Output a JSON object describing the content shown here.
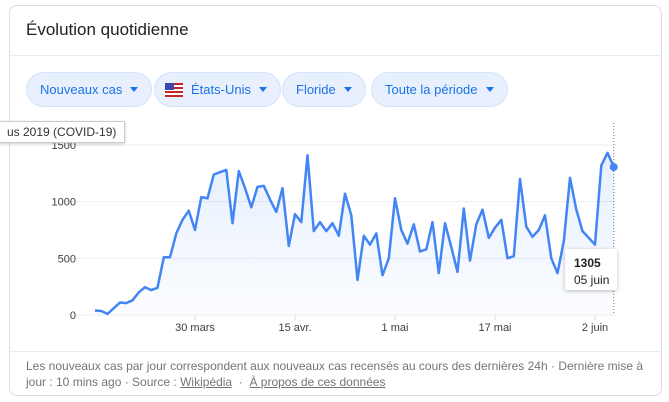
{
  "header": {
    "title": "Évolution quotidienne"
  },
  "filters": [
    {
      "label": "Nouveaux cas"
    },
    {
      "label": "États-Unis",
      "icon": "us-flag-icon"
    },
    {
      "label": "Floride"
    },
    {
      "label": "Toute la période"
    }
  ],
  "tooltip_left": "us 2019 (COVID-19)",
  "tooltip": {
    "value": "1305",
    "date": "05 juin"
  },
  "footer": {
    "text": "Les nouveaux cas par jour correspondent aux nouveaux cas recensés au cours des dernières 24h · Dernière mise à jour : 10 mins ago  ·  Source : ",
    "source_link": "Wikipédia",
    "sep": "  ·  ",
    "about_link": "À propos de ces données"
  },
  "chart_data": {
    "type": "area",
    "title": "Évolution quotidienne",
    "start_date": "14 mars",
    "end_date": "05 juin",
    "ylim": [
      0,
      1500
    ],
    "yticks": [
      "0",
      "500",
      "1000",
      "1500"
    ],
    "xticks": [
      {
        "label": "30 mars",
        "day": 16
      },
      {
        "label": "15 avr.",
        "day": 32
      },
      {
        "label": "1 mai",
        "day": 48
      },
      {
        "label": "17 mai",
        "day": 64
      },
      {
        "label": "2 juin",
        "day": 80
      }
    ],
    "grid": true,
    "color": "#4285f4",
    "values": [
      40,
      35,
      10,
      60,
      110,
      105,
      130,
      200,
      245,
      220,
      240,
      510,
      510,
      720,
      840,
      920,
      750,
      1040,
      1030,
      1240,
      1260,
      1280,
      810,
      1270,
      1120,
      950,
      1130,
      1140,
      1020,
      910,
      1120,
      610,
      890,
      820,
      1410,
      740,
      820,
      740,
      810,
      700,
      1070,
      880,
      310,
      700,
      620,
      720,
      350,
      500,
      1030,
      750,
      630,
      800,
      560,
      580,
      820,
      370,
      810,
      600,
      380,
      940,
      480,
      800,
      930,
      680,
      770,
      840,
      500,
      520,
      1200,
      780,
      690,
      750,
      880,
      500,
      370,
      650,
      1210,
      930,
      740,
      680,
      620,
      1320,
      1430,
      1305
    ]
  }
}
